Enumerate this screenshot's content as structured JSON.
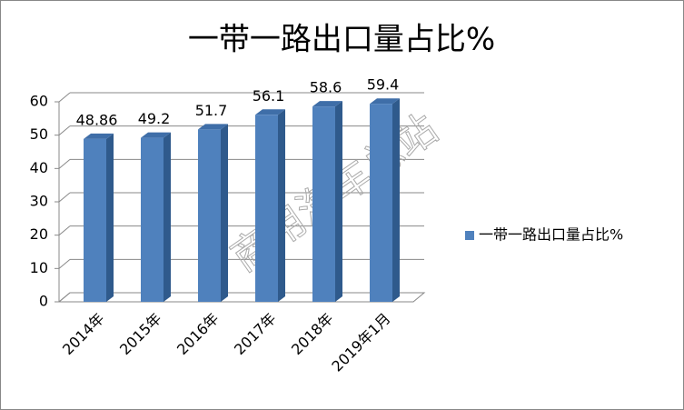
{
  "chart_data": {
    "type": "bar3d",
    "title": "一带一路出口量占比%",
    "categories": [
      "2014年",
      "2015年",
      "2016年",
      "2017年",
      "2018年",
      "2019年1月"
    ],
    "series": [
      {
        "name": "一带一路出口量占比%",
        "color": "#4f81bd",
        "values": [
          48.86,
          49.2,
          51.7,
          56.1,
          58.6,
          59.4
        ]
      }
    ],
    "ylim": [
      0,
      60
    ],
    "yticks": [
      0,
      10,
      20,
      30,
      40,
      50,
      60
    ],
    "grid": true,
    "legend": "right",
    "watermark": "商用汽车总站"
  }
}
